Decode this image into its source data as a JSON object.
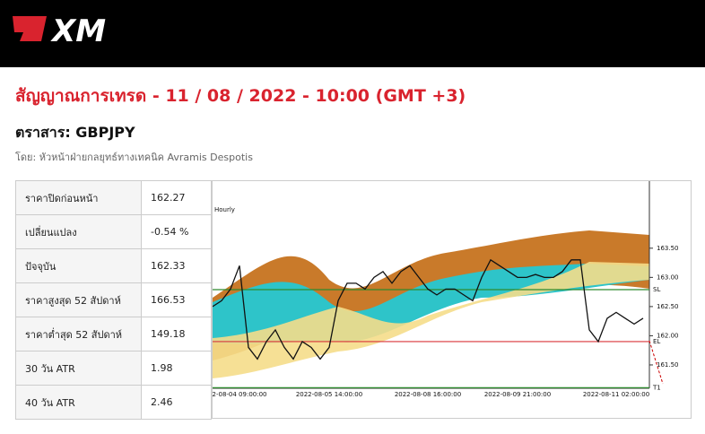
{
  "header": {
    "logo": "XM"
  },
  "title": "สัญญาณการเทรด - 11 / 08 / 2022 - 10:00 (GMT +3)",
  "instrument": "ตราสาร: GBPJPY",
  "author": "โดย: หัวหน้าฝ่ายกลยุทธ์ทางเทคนิค Avramis Despotis",
  "table": {
    "rows": [
      [
        "ราคาปิดก่อนหน้า",
        "162.27"
      ],
      [
        "เปลี่ยนแปลง",
        "-0.54 %"
      ],
      [
        "ปัจจุบัน",
        "162.33"
      ],
      [
        "ราคาสูงสุด 52 สัปดาห์",
        "166.53"
      ],
      [
        "ราคาต่ำสุด 52 สัปดาห์",
        "149.18"
      ],
      [
        "30 วัน ATR",
        "1.98"
      ],
      [
        "40 วัน ATR",
        "2.46"
      ]
    ]
  },
  "chart_data": {
    "type": "line",
    "subtitle": "Hourly",
    "x": [
      null,
      null,
      null,
      "2-08-04 09:00:00",
      null,
      null,
      null,
      null,
      null,
      null,
      null,
      null,
      null,
      "2022-08-05 14:00:00",
      null,
      null,
      null,
      null,
      null,
      null,
      null,
      null,
      null,
      null,
      "2022-08-08 16:00:00",
      null,
      null,
      null,
      null,
      null,
      null,
      null,
      null,
      null,
      "2022-08-09 21:00:00",
      null,
      null,
      null,
      null,
      null,
      null,
      null,
      null,
      null,
      null,
      "2022-08-11 02:00:00",
      null,
      null,
      null
    ],
    "series": [
      {
        "color": "#111111",
        "values": [
          162.5,
          162.6,
          162.8,
          163.2,
          161.8,
          161.6,
          161.9,
          162.1,
          161.8,
          161.6,
          161.9,
          161.8,
          161.6,
          161.8,
          162.6,
          162.9,
          162.9,
          162.8,
          163.0,
          163.1,
          162.9,
          163.1,
          163.2,
          163.0,
          162.8,
          162.7,
          162.8,
          162.8,
          162.7,
          162.6,
          163.0,
          163.3,
          163.2,
          163.1,
          163.0,
          163.0,
          163.05,
          163.0,
          163.0,
          163.1,
          163.3,
          163.3,
          162.1,
          161.9,
          162.3,
          162.4,
          162.3,
          162.2,
          162.3
        ]
      }
    ],
    "levels": [
      {
        "name": "SL",
        "value": 162.79,
        "color": "#2e8b2e"
      },
      {
        "name": "EL",
        "value": 161.9,
        "color": "#d9343a"
      },
      {
        "name": "T1",
        "value": 161.11,
        "color": "#2e8b2e"
      }
    ],
    "ylim": [
      161.1,
      164.05
    ],
    "yticks": [
      {
        "value": 161.5,
        "label": "161.50"
      },
      {
        "value": 162,
        "label": "162.00"
      },
      {
        "value": 162.5,
        "label": "162.50"
      },
      {
        "value": 163,
        "label": "163.00"
      },
      {
        "value": 163.5,
        "label": "163.50"
      }
    ]
  }
}
